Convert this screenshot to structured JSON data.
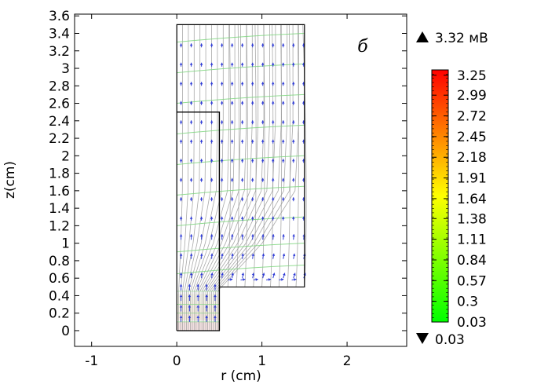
{
  "chart_data": {
    "type": "streamline-field",
    "panel_label": "б",
    "xlabel": "r (cm)",
    "ylabel": "z(cm)",
    "xlim": [
      -1.2,
      2.7
    ],
    "ylim": [
      -0.18,
      3.62
    ],
    "x_ticks": [
      "-1",
      "0",
      "1",
      "2"
    ],
    "x_tick_values": [
      -1,
      0,
      1,
      2
    ],
    "y_ticks": [
      "0",
      "0.2",
      "0.4",
      "0.6",
      "0.8",
      "1",
      "1.2",
      "1.4",
      "1.6",
      "1.8",
      "2",
      "2.2",
      "2.4",
      "2.6",
      "2.8",
      "3",
      "3.2",
      "3.4",
      "3.6"
    ],
    "y_tick_values": [
      0,
      0.2,
      0.4,
      0.6,
      0.8,
      1,
      1.2,
      1.4,
      1.6,
      1.8,
      2,
      2.2,
      2.4,
      2.6,
      2.8,
      3,
      3.2,
      3.4,
      3.6
    ],
    "geometry": {
      "outer": [
        [
          0,
          0
        ],
        [
          0,
          3.5
        ],
        [
          1.5,
          3.5
        ],
        [
          1.5,
          0.5
        ],
        [
          0.5,
          0.5
        ],
        [
          0.5,
          0
        ],
        [
          0,
          0
        ]
      ],
      "inner_boundary": [
        [
          0,
          2.5
        ],
        [
          0.5,
          2.5
        ],
        [
          0.5,
          0
        ]
      ]
    },
    "colorbar": {
      "max_label": "3.32 мВ",
      "min_label": "0.03",
      "tick_labels": [
        "3.25",
        "2.99",
        "2.72",
        "2.45",
        "2.18",
        "1.91",
        "1.64",
        "1.38",
        "1.11",
        "0.84",
        "0.57",
        "0.3",
        "0.03"
      ],
      "tick_values": [
        3.25,
        2.99,
        2.72,
        2.45,
        2.18,
        1.91,
        1.64,
        1.38,
        1.11,
        0.84,
        0.57,
        0.3,
        0.03
      ],
      "range": [
        0.03,
        3.32
      ],
      "colors": [
        "#00ff00",
        "#ffff00",
        "#ff0000"
      ]
    },
    "colors": {
      "streamline": "#9a9a9a",
      "contour": "#7fd67f",
      "arrow": "#2e3bd6",
      "boundary": "#000000"
    }
  }
}
